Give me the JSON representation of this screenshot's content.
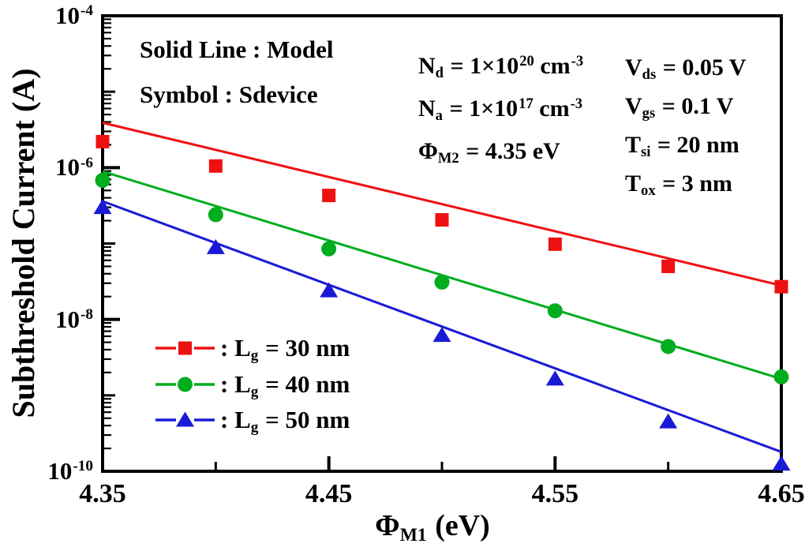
{
  "chart_data": {
    "type": "line+scatter",
    "title": "",
    "xlabel": "Phi_M1 (eV)",
    "ylabel": "Subthreshold Current (A)",
    "x_scale": "linear",
    "y_scale": "log",
    "xlim": [
      4.35,
      4.65
    ],
    "ylim": [
      1e-10,
      0.0001
    ],
    "x_major_ticks": [
      4.35,
      4.45,
      4.55,
      4.65
    ],
    "x_minor_ticks": [
      4.4,
      4.5,
      4.6
    ],
    "y_tick_exponents": [
      -4,
      -6,
      -8,
      -10
    ],
    "grid": false,
    "legend_position": "lower-left",
    "x": [
      4.35,
      4.4,
      4.45,
      4.5,
      4.55,
      4.6,
      4.65
    ],
    "series": [
      {
        "name": "Model Lg = 30 nm",
        "type": "line",
        "marker": null,
        "color": "#ee1111",
        "x": [
          4.35,
          4.65
        ],
        "values": [
          3.9e-06,
          2.8e-08
        ]
      },
      {
        "name": "Sdevice Lg = 30 nm",
        "type": "scatter",
        "marker": "square",
        "color": "#ee1111",
        "values": [
          2.2e-06,
          1.05e-06,
          4.3e-07,
          2.05e-07,
          9.8e-08,
          5e-08,
          2.7e-08
        ]
      },
      {
        "name": "Model Lg = 40 nm",
        "type": "line",
        "marker": null,
        "color": "#00ad1f",
        "x": [
          4.35,
          4.65
        ],
        "values": [
          8.9e-07,
          1.65e-09
        ]
      },
      {
        "name": "Sdevice Lg = 40 nm",
        "type": "scatter",
        "marker": "circle",
        "color": "#00ad1f",
        "values": [
          6.8e-07,
          2.4e-07,
          8.5e-08,
          3.1e-08,
          1.3e-08,
          4.4e-09,
          1.75e-09
        ]
      },
      {
        "name": "Model Lg = 50 nm",
        "type": "line",
        "marker": null,
        "color": "#1a1ad6",
        "x": [
          4.35,
          4.65
        ],
        "values": [
          3.6e-07,
          1.8e-10
        ]
      },
      {
        "name": "Sdevice Lg = 50 nm",
        "type": "scatter",
        "marker": "triangle",
        "color": "#1a1ad6",
        "values": [
          3e-07,
          8.9e-08,
          2.4e-08,
          6.2e-09,
          1.65e-09,
          4.5e-10,
          1.25e-10
        ]
      }
    ]
  },
  "axes": {
    "y_label": "Subthreshold Current (A)",
    "x_label": "Φ_{M1} (eV)",
    "y_tick_labels": [
      "10^{-4}",
      "10^{-6}",
      "10^{-8}",
      "10^{-10}"
    ],
    "x_tick_labels": [
      "4.35",
      "4.45",
      "4.55",
      "4.65"
    ]
  },
  "annotations": {
    "line_note": "Solid Line : Model",
    "symbol_note": "Symbol : Sdevice",
    "device_params": [
      "N_{d} = 1×10^{20} cm^{-3}",
      "N_{a} = 1×10^{17} cm^{-3}",
      "Φ_{M2} = 4.35 eV"
    ],
    "bias_params": [
      "V_{ds} = 0.05 V",
      "V_{gs} = 0.1 V",
      "T_{si} = 20 nm",
      "T_{ox} = 3 nm"
    ]
  },
  "legend": {
    "items": [
      {
        "marker": "square",
        "color": "#ee1111",
        "label": ": L_{g} = 30 nm"
      },
      {
        "marker": "circle",
        "color": "#00ad1f",
        "label": ": L_{g} = 40 nm"
      },
      {
        "marker": "triangle",
        "color": "#1a1ad6",
        "label": ": L_{g} = 50 nm"
      }
    ]
  },
  "colors": {
    "frame": "#000000",
    "background": "#ffffff",
    "lg30": "#ee1111",
    "lg40": "#00ad1f",
    "lg50": "#1a1ad6"
  }
}
